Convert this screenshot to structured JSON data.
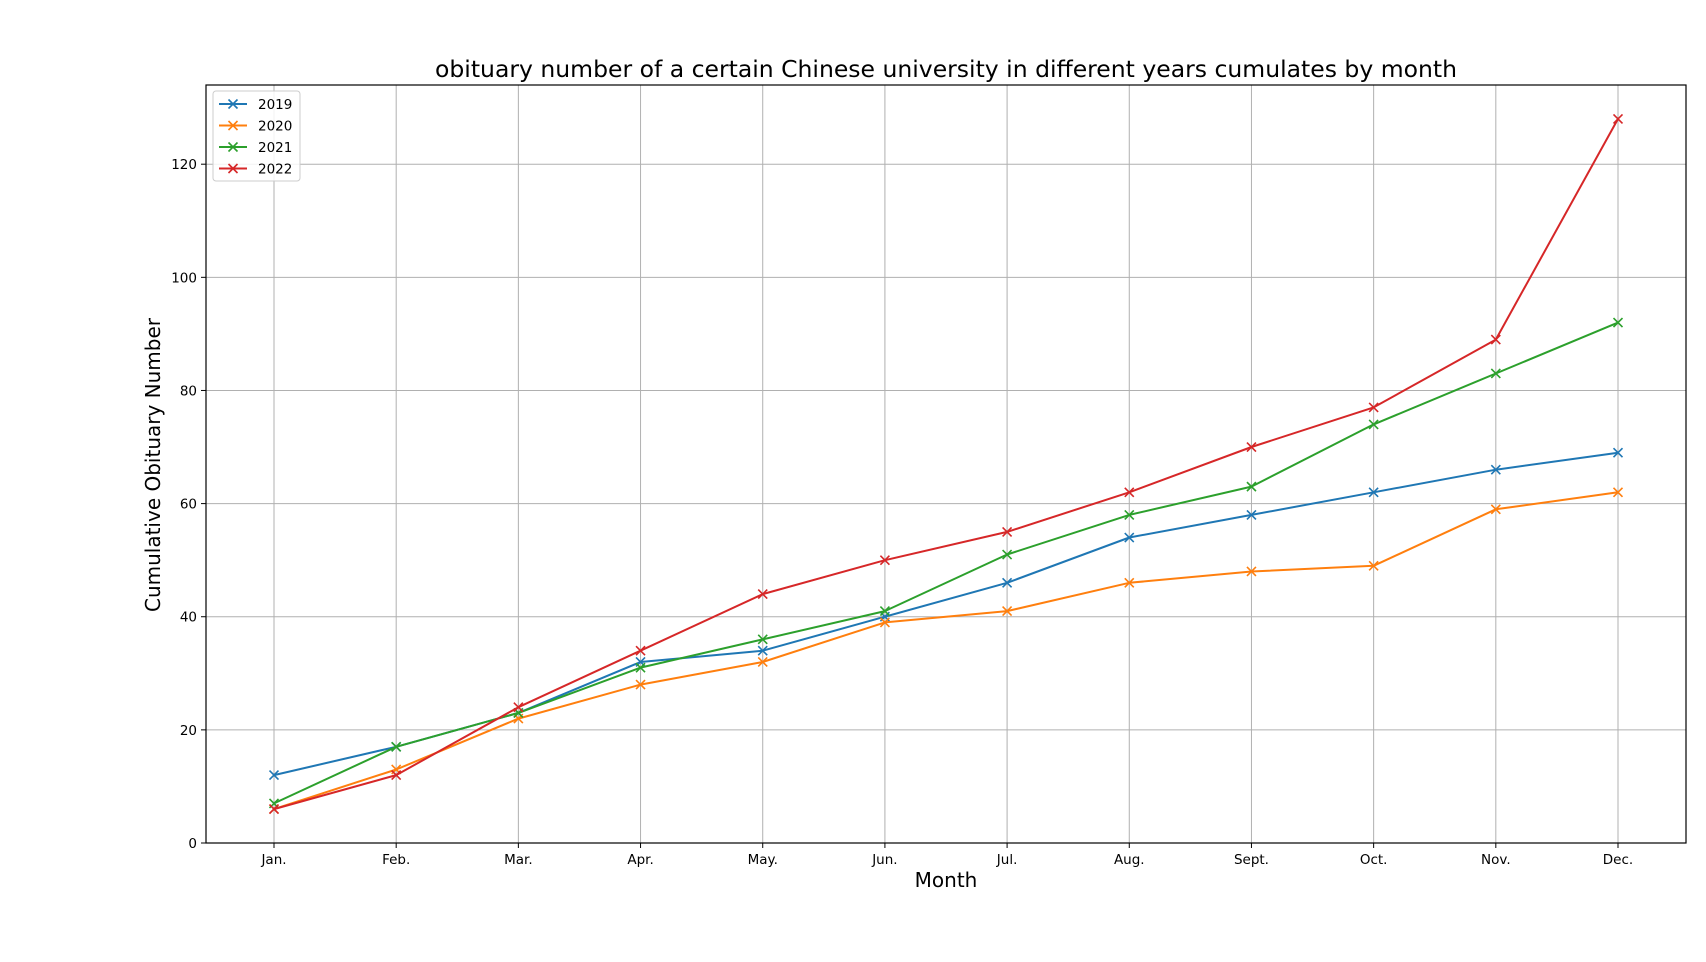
{
  "chart_data": {
    "type": "line",
    "title": "obituary number of a certain Chinese university in different years cumulates by month",
    "xlabel": "Month",
    "ylabel": "Cumulative Obituary Number",
    "categories": [
      "Jan.",
      "Feb.",
      "Mar.",
      "Apr.",
      "May.",
      "Jun.",
      "Jul.",
      "Aug.",
      "Sept.",
      "Oct.",
      "Nov.",
      "Dec."
    ],
    "ylim": [
      0,
      134
    ],
    "yticks": [
      0,
      20,
      40,
      60,
      80,
      100,
      120
    ],
    "grid": true,
    "legend_position": "top-left",
    "marker": "x",
    "series": [
      {
        "name": "2019",
        "color": "#1f77b4",
        "values": [
          12,
          17,
          23,
          32,
          34,
          40,
          46,
          54,
          58,
          62,
          66,
          69
        ]
      },
      {
        "name": "2020",
        "color": "#ff7f0e",
        "values": [
          6,
          13,
          22,
          28,
          32,
          39,
          41,
          46,
          48,
          49,
          59,
          62
        ]
      },
      {
        "name": "2021",
        "color": "#2ca02c",
        "values": [
          7,
          17,
          23,
          31,
          36,
          41,
          51,
          58,
          63,
          74,
          83,
          92
        ]
      },
      {
        "name": "2022",
        "color": "#d62728",
        "values": [
          6,
          12,
          24,
          34,
          44,
          50,
          55,
          62,
          70,
          77,
          89,
          128
        ]
      }
    ]
  }
}
